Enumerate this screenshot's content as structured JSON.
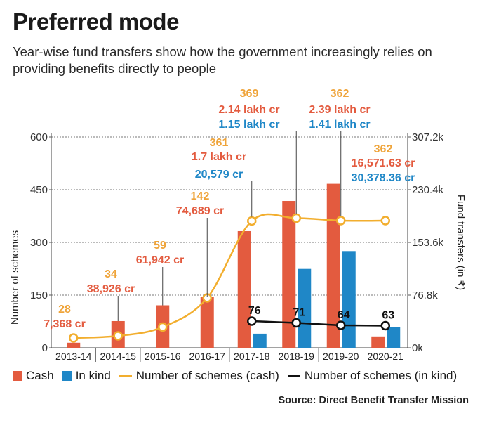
{
  "header": {
    "title": "Preferred mode",
    "subtitle": "Year-wise fund transfers show how the government increasingly relies on providing benefits directly to people"
  },
  "legend": {
    "cash": "Cash",
    "in_kind": "In kind",
    "schemes_cash": "Number of schemes (cash)",
    "schemes_in_kind": "Number of schemes (in kind)"
  },
  "source": "Source: Direct Benefit Transfer Mission",
  "colors": {
    "cash": "#e35b3f",
    "in_kind": "#1f87c7",
    "schemes_cash_line": "#f2ae2e",
    "schemes_cash_label": "#efa43a",
    "schemes_in_kind_line": "#111111"
  },
  "chart_data": {
    "type": "bar",
    "categories": [
      "2013-14",
      "2014-15",
      "2015-16",
      "2016-17",
      "2017-18",
      "2018-19",
      "2019-20",
      "2020-21"
    ],
    "xlabel": "",
    "y_left": {
      "label": "Number of schemes",
      "lim": [
        0,
        600
      ],
      "ticks": [
        0,
        150,
        300,
        450,
        600
      ],
      "tick_labels": [
        "0",
        "150",
        "300",
        "450",
        "600"
      ]
    },
    "y_right": {
      "label": "Fund transfers (in ₹)",
      "lim": [
        0,
        307200
      ],
      "unit": "crore",
      "ticks": [
        0,
        76800,
        153600,
        230400,
        307200
      ],
      "tick_labels": [
        "0k",
        "76.8k",
        "153.6k",
        "230.4k",
        "307.2k"
      ]
    },
    "grid": true,
    "series": [
      {
        "name": "Cash",
        "kind": "bar",
        "axis": "right",
        "values": [
          7368,
          38926,
          61942,
          74689,
          170000,
          214000,
          239000,
          16571.63
        ],
        "labels": [
          "7,368 cr",
          "38,926 cr",
          "61,942 cr",
          "74,689 cr",
          "1.7 lakh cr",
          "2.14 lakh cr",
          "2.39 lakh cr",
          "16,571.63 cr"
        ]
      },
      {
        "name": "In kind",
        "kind": "bar",
        "axis": "right",
        "values": [
          null,
          null,
          null,
          null,
          20579,
          115000,
          141000,
          30378.36
        ],
        "labels": [
          "",
          "",
          "",
          "",
          "20,579 cr",
          "1.15 lakh cr",
          "1.41 lakh cr",
          "30,378.36 cr"
        ]
      },
      {
        "name": "Number of schemes (cash)",
        "kind": "line",
        "axis": "left",
        "values": [
          28,
          34,
          59,
          142,
          361,
          369,
          362,
          362
        ],
        "labels": [
          "28",
          "34",
          "59",
          "142",
          "361",
          "369",
          "362",
          "362"
        ]
      },
      {
        "name": "Number of schemes (in kind)",
        "kind": "line",
        "axis": "left",
        "values": [
          null,
          null,
          null,
          null,
          76,
          71,
          64,
          63
        ],
        "labels": [
          "",
          "",
          "",
          "",
          "76",
          "71",
          "64",
          "63"
        ]
      }
    ]
  }
}
